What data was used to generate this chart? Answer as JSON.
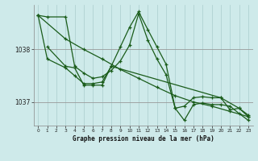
{
  "title": "Graphe pression niveau de la mer (hPa)",
  "bg_color": "#ceeaea",
  "grid_color": "#aacccc",
  "line_color": "#1a5c1a",
  "xlim": [
    -0.5,
    23.5
  ],
  "ylim": [
    1036.55,
    1038.85
  ],
  "yticks": [
    1037,
    1038
  ],
  "xticks": [
    0,
    1,
    2,
    3,
    4,
    5,
    6,
    7,
    8,
    9,
    10,
    11,
    12,
    13,
    14,
    15,
    16,
    17,
    18,
    19,
    20,
    21,
    22,
    23
  ],
  "lines": [
    {
      "x": [
        0,
        1,
        3,
        4,
        5,
        6,
        7,
        8,
        9,
        10,
        11,
        12,
        13,
        14,
        15,
        16,
        17,
        18,
        19,
        20,
        21,
        22,
        23
      ],
      "y": [
        1038.65,
        1037.82,
        1037.65,
        1037.5,
        1037.35,
        1037.35,
        1037.38,
        1037.68,
        1038.05,
        1038.42,
        1038.72,
        1038.38,
        1038.05,
        1037.72,
        1036.88,
        1036.92,
        1037.08,
        1037.1,
        1037.08,
        1037.08,
        1036.85,
        1036.88,
        1036.72
      ]
    },
    {
      "x": [
        0,
        3,
        5,
        7,
        9,
        11,
        13,
        15,
        17,
        19,
        21,
        23
      ],
      "y": [
        1038.65,
        1038.2,
        1038.0,
        1037.82,
        1037.62,
        1037.45,
        1037.28,
        1037.12,
        1037.0,
        1036.92,
        1036.82,
        1036.72
      ]
    },
    {
      "x": [
        0,
        1,
        3,
        4,
        5,
        6,
        7,
        8,
        9,
        10,
        11,
        12,
        13,
        14,
        15,
        16,
        17,
        18,
        19,
        20,
        21,
        22,
        23
      ],
      "y": [
        1038.65,
        1038.62,
        1038.62,
        1037.68,
        1037.55,
        1037.45,
        1037.48,
        1037.6,
        1037.78,
        1038.08,
        1038.68,
        1038.18,
        1037.82,
        1037.52,
        1036.88,
        1036.65,
        1036.95,
        1036.98,
        1036.95,
        1036.95,
        1036.92,
        1036.78,
        1036.65
      ]
    },
    {
      "x": [
        1,
        3,
        4,
        5,
        6,
        7,
        8,
        20,
        22,
        23
      ],
      "y": [
        1038.05,
        1037.68,
        1037.65,
        1037.32,
        1037.32,
        1037.32,
        1037.68,
        1037.08,
        1036.88,
        1036.75
      ]
    }
  ]
}
